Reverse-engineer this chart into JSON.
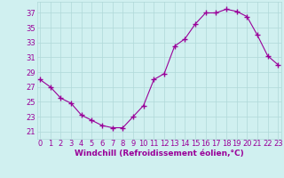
{
  "x": [
    0,
    1,
    2,
    3,
    4,
    5,
    6,
    7,
    8,
    9,
    10,
    11,
    12,
    13,
    14,
    15,
    16,
    17,
    18,
    19,
    20,
    21,
    22,
    23
  ],
  "y": [
    28.0,
    27.0,
    25.5,
    24.8,
    23.2,
    22.5,
    21.8,
    21.5,
    21.5,
    23.0,
    24.5,
    28.0,
    28.8,
    32.5,
    33.5,
    35.5,
    37.0,
    37.0,
    37.5,
    37.2,
    36.5,
    34.0,
    31.2,
    30.0
  ],
  "line_color": "#990099",
  "marker": "+",
  "marker_size": 4.0,
  "marker_lw": 1.0,
  "bg_color": "#d0f0f0",
  "grid_color": "#b0d8d8",
  "xlabel": "Windchill (Refroidissement éolien,°C)",
  "xlabel_color": "#990099",
  "xlabel_fontsize": 6.5,
  "tick_color": "#990099",
  "tick_fontsize": 6,
  "yticks": [
    21,
    23,
    25,
    27,
    29,
    31,
    33,
    35,
    37
  ],
  "xticks": [
    0,
    1,
    2,
    3,
    4,
    5,
    6,
    7,
    8,
    9,
    10,
    11,
    12,
    13,
    14,
    15,
    16,
    17,
    18,
    19,
    20,
    21,
    22,
    23
  ],
  "ylim": [
    20.0,
    38.5
  ],
  "xlim": [
    -0.3,
    23.3
  ]
}
